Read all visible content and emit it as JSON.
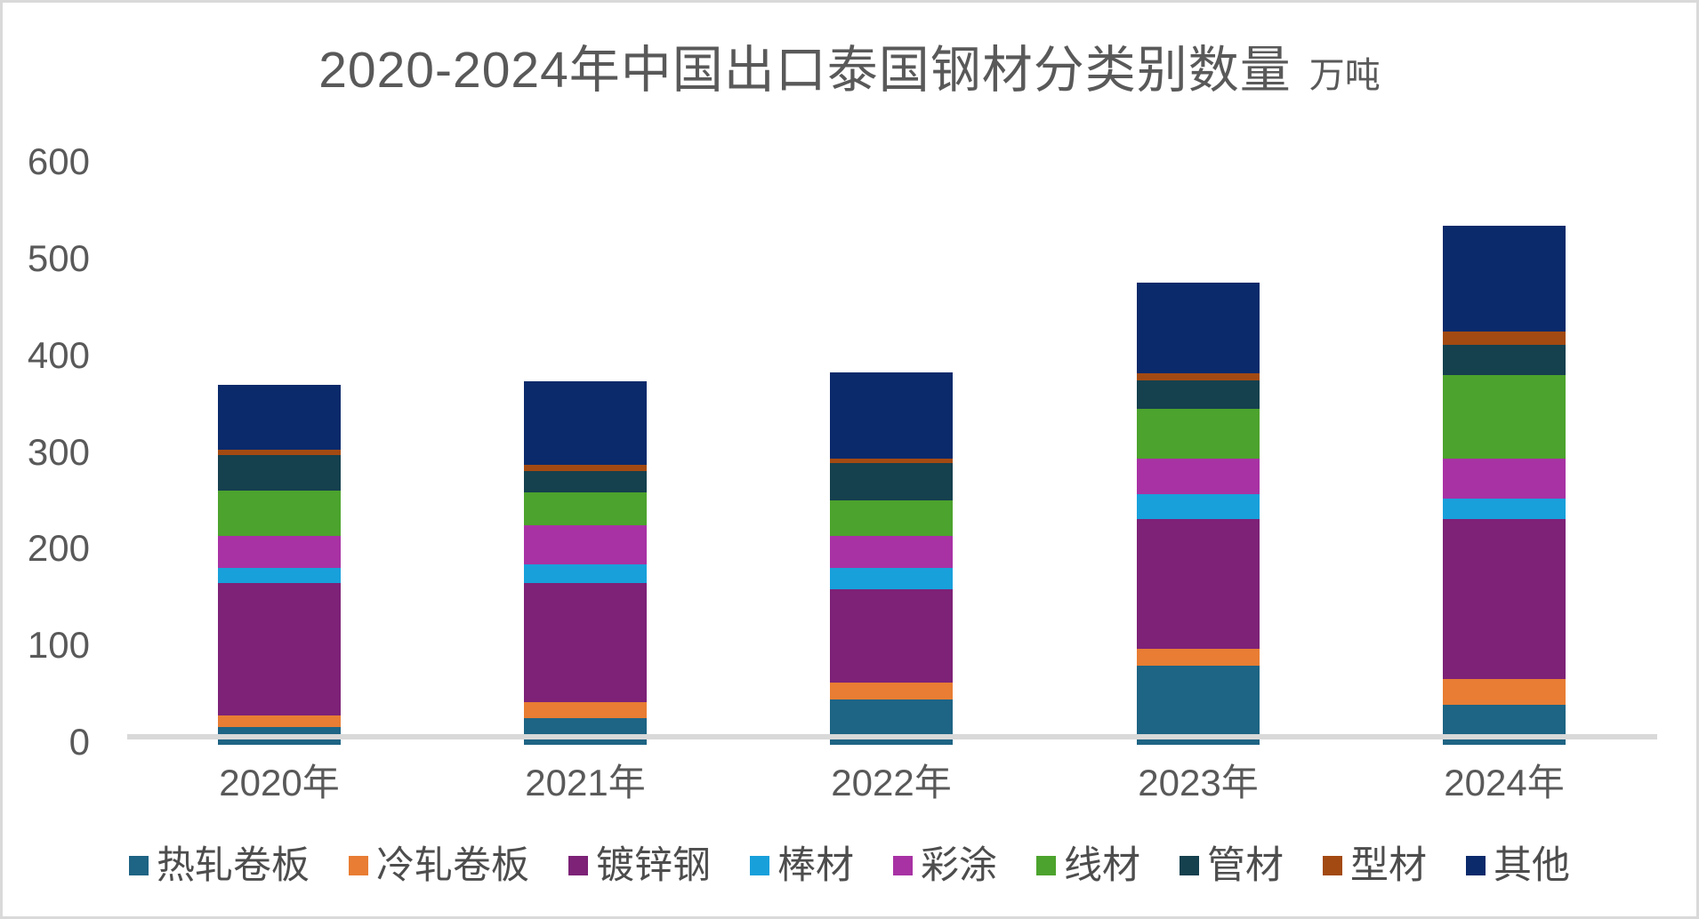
{
  "title": {
    "text": "2020-2024年中国出口泰国钢材分类别数量",
    "unit": "万吨",
    "color": "#595959"
  },
  "y_axis": {
    "ticks": [
      0,
      100,
      200,
      300,
      400,
      500,
      600
    ],
    "color": "#595959"
  },
  "x_axis": {
    "labels": [
      "2020年",
      "2021年",
      "2022年",
      "2023年",
      "2024年"
    ],
    "color": "#595959"
  },
  "axis_line_color": "#D9D9D9",
  "frame_border_color": "#D9D9D9",
  "chart_data": {
    "type": "bar",
    "stacked": true,
    "title": "2020-2024年中国出口泰国钢材分类别数量",
    "unit_label": "万吨",
    "categories": [
      "2020年",
      "2021年",
      "2022年",
      "2023年",
      "2024年"
    ],
    "series": [
      {
        "name": "热轧卷板",
        "color": "#1E6484",
        "values": [
          10,
          19,
          39,
          74,
          33
        ]
      },
      {
        "name": "冷轧卷板",
        "color": "#E87D33",
        "values": [
          12,
          17,
          17,
          17,
          27
        ]
      },
      {
        "name": "镀锌钢",
        "color": "#7D2277",
        "values": [
          137,
          123,
          97,
          134,
          165
        ]
      },
      {
        "name": "棒材",
        "color": "#18A0DB",
        "values": [
          16,
          19,
          22,
          26,
          21
        ]
      },
      {
        "name": "彩涂",
        "color": "#A832A4",
        "values": [
          33,
          41,
          33,
          37,
          42
        ]
      },
      {
        "name": "线材",
        "color": "#4CA32D",
        "values": [
          47,
          34,
          37,
          51,
          86
        ]
      },
      {
        "name": "管材",
        "color": "#15404E",
        "values": [
          36,
          22,
          38,
          30,
          31
        ]
      },
      {
        "name": "型材",
        "color": "#A34A12",
        "values": [
          6,
          6,
          5,
          7,
          14
        ]
      },
      {
        "name": "其他",
        "color": "#0A2A6B",
        "values": [
          67,
          87,
          89,
          94,
          110
        ]
      }
    ],
    "totals": [
      364,
      368,
      377,
      470,
      529
    ],
    "ylim": [
      0,
      600
    ],
    "ytick_step": 100,
    "legend_position": "bottom",
    "grid": false
  }
}
